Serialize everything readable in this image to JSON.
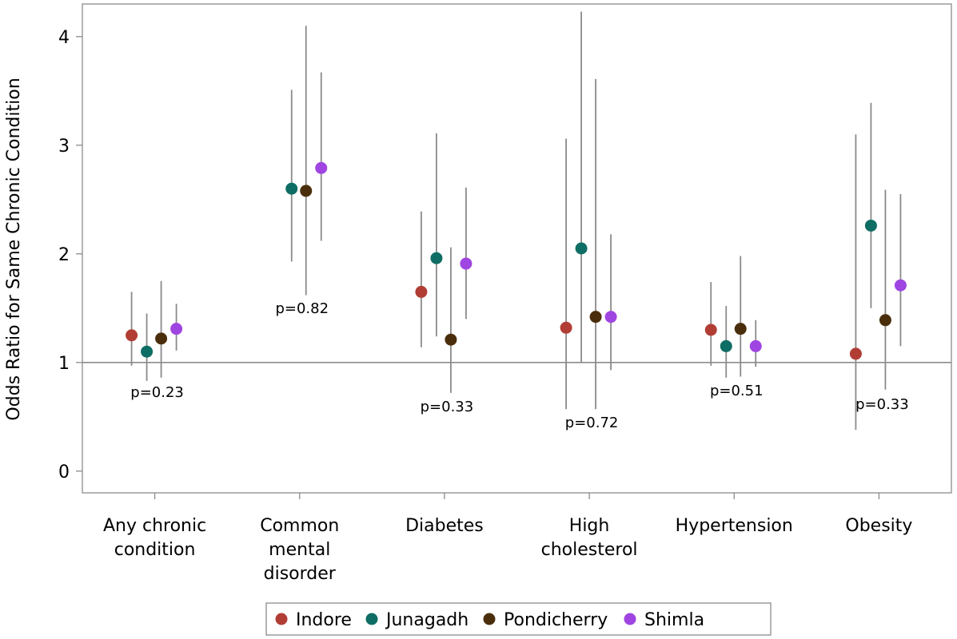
{
  "chart_data": {
    "type": "scatter",
    "title": "",
    "xlabel": "",
    "ylabel": "Odds Ratio for Same Chronic Condition",
    "ylim": [
      -0.2,
      4.3
    ],
    "yticks": [
      "0",
      "1",
      "2",
      "3",
      "4"
    ],
    "reference_line": 1,
    "grid": false,
    "legend_position": "bottom",
    "categories": [
      [
        "Any chronic",
        "condition"
      ],
      [
        "Common",
        "mental",
        "disorder"
      ],
      [
        "Diabetes"
      ],
      [
        "High",
        "cholesterol"
      ],
      [
        "Hypertension"
      ],
      [
        "Obesity"
      ]
    ],
    "p_values": [
      "p=0.23",
      "p=0.82",
      "p=0.33",
      "p=0.72",
      "p=0.51",
      "p=0.33"
    ],
    "series": [
      {
        "name": "Indore",
        "color": "#b13d35",
        "values": [
          1.25,
          null,
          1.65,
          1.32,
          1.3,
          1.08
        ],
        "lower": [
          0.97,
          null,
          1.14,
          0.57,
          0.97,
          0.38
        ],
        "upper": [
          1.65,
          null,
          2.39,
          3.06,
          1.74,
          3.1
        ]
      },
      {
        "name": "Junagadh",
        "color": "#0e6d64",
        "values": [
          1.1,
          2.6,
          1.96,
          2.05,
          1.15,
          2.26
        ],
        "lower": [
          0.83,
          1.93,
          1.24,
          1.0,
          0.86,
          1.5
        ],
        "upper": [
          1.45,
          3.51,
          3.11,
          4.23,
          1.52,
          3.39
        ]
      },
      {
        "name": "Pondicherry",
        "color": "#4a2e0c",
        "values": [
          1.22,
          2.58,
          1.21,
          1.42,
          1.31,
          1.39
        ],
        "lower": [
          0.86,
          1.62,
          0.72,
          0.57,
          0.87,
          0.75
        ],
        "upper": [
          1.75,
          4.1,
          2.06,
          3.61,
          1.98,
          2.59
        ]
      },
      {
        "name": "Shimla",
        "color": "#9f45e2",
        "values": [
          1.31,
          2.79,
          1.91,
          1.42,
          1.15,
          1.71
        ],
        "lower": [
          1.11,
          2.12,
          1.4,
          0.93,
          0.96,
          1.15
        ],
        "upper": [
          1.54,
          3.67,
          2.61,
          2.18,
          1.39,
          2.55
        ]
      }
    ]
  }
}
